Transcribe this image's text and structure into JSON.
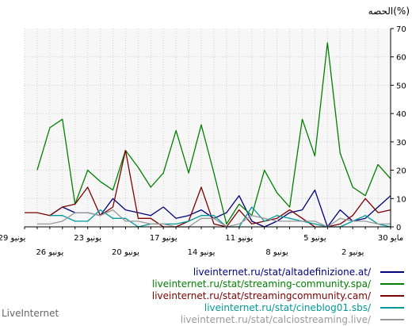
{
  "chart_data": {
    "type": "line",
    "title": "الحصه(%)",
    "ylim": [
      0,
      70
    ],
    "yticks": [
      0,
      10,
      20,
      30,
      40,
      50,
      60,
      70
    ],
    "grid": true,
    "legend_position": "bottom-right",
    "x_labels_upper": [
      "30 مايو",
      "5 يونيو",
      "11 يونيو",
      "17 يونيو",
      "23 يونيو",
      "29 يونيو"
    ],
    "x_labels_lower": [
      "2 يونيو",
      "8 يونيو",
      "14 يونيو",
      "20 يونيو",
      "26 يونيو"
    ],
    "series": [
      {
        "name": "liveinternet.ru/stat/altadefinizione.at/",
        "color": "#00007f",
        "values": [
          11,
          7,
          3,
          2,
          6,
          0,
          13,
          6,
          5,
          2,
          0,
          2,
          11,
          5,
          3,
          6,
          4,
          3,
          7,
          4,
          5,
          6,
          10,
          4,
          5,
          5,
          7,
          4
        ]
      },
      {
        "name": "liveinternet.ru/stat/streaming-community.spa/",
        "color": "#008000",
        "values": [
          17,
          22,
          11,
          14,
          26,
          65,
          25,
          38,
          7,
          12,
          20,
          4,
          8,
          1,
          19,
          36,
          19,
          34,
          19,
          14,
          21,
          27,
          13,
          16,
          20,
          8,
          38,
          35,
          20
        ]
      },
      {
        "name": "liveinternet.ru/stat/streamingcommunity.cam/",
        "color": "#7f0000",
        "values": [
          6,
          5,
          10,
          4,
          1,
          0,
          0,
          3,
          6,
          3,
          2,
          1,
          6,
          0,
          1,
          14,
          2,
          0,
          0,
          3,
          3,
          27,
          7,
          4,
          14,
          8,
          7,
          4,
          5,
          5
        ]
      },
      {
        "name": "liveinternet.ru/stat/cineblog01.sbs/",
        "color": "#009999",
        "values": [
          0,
          1,
          4,
          2,
          0,
          0,
          1,
          2,
          3,
          4,
          2,
          7,
          0,
          0,
          4,
          4,
          2,
          1,
          1,
          1,
          0,
          3,
          3,
          6,
          2,
          2,
          4,
          4
        ]
      },
      {
        "name": "liveinternet.ru/stat/calciostreaming.live/",
        "color": "#999999",
        "values": [
          1,
          1,
          2,
          2,
          3,
          0,
          2,
          2,
          2,
          2,
          3,
          4,
          1,
          0,
          3,
          3,
          0,
          0,
          1,
          1,
          2,
          2,
          6,
          4,
          5,
          5,
          2,
          1,
          1
        ]
      }
    ]
  },
  "brand": "LiveInternet"
}
